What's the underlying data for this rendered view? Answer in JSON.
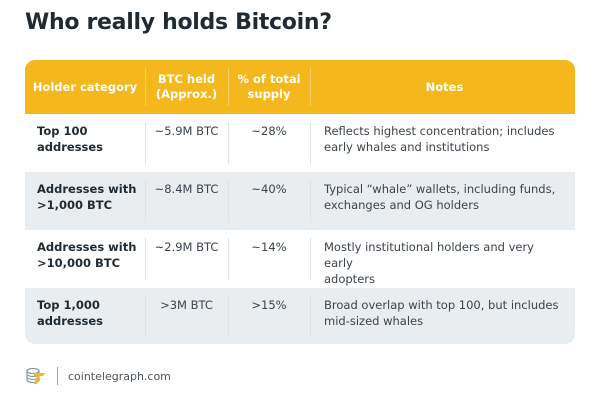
{
  "title": "Who really holds Bitcoin?",
  "table": {
    "headers": [
      "Holder category",
      "BTC held\n(Approx.)",
      "% of total supply",
      "Notes"
    ],
    "header_lines": {
      "col1": "Holder category",
      "col2_line1": "BTC held",
      "col2_line2": "(Approx.)",
      "col3_line1": "% of total",
      "col3_line2": "supply",
      "col4": "Notes"
    },
    "rows": [
      {
        "category_line1": "Top 100",
        "category_line2": "addresses",
        "btc": "~5.9M BTC",
        "pct": "~28%",
        "notes_line1": "Reflects highest concentration; includes",
        "notes_line2": "early whales and institutions"
      },
      {
        "category_line1": "Addresses with",
        "category_line2": ">1,000 BTC",
        "btc": "~8.4M BTC",
        "pct": "~40%",
        "notes_line1": "Typical “whale” wallets, including funds,",
        "notes_line2": "exchanges and OG holders"
      },
      {
        "category_line1": "Addresses with",
        "category_line2": ">10,000 BTC",
        "btc": "~2.9M BTC",
        "pct": "~14%",
        "notes_line1": "Mostly institutional holders and very early",
        "notes_line2": "adopters"
      },
      {
        "category_line1": "Top 1,000",
        "category_line2": "addresses",
        "btc": ">3M BTC",
        "pct": ">15%",
        "notes_line1": "Broad overlap with top 100, but includes",
        "notes_line2": "mid-sized whales"
      }
    ]
  },
  "footer": {
    "logo_icon": "cointelegraph-logo-icon",
    "site": "cointelegraph.com"
  },
  "colors": {
    "header_bg": "#f5b81c",
    "alt_row_bg": "#e9edf0",
    "title": "#1f2a33"
  }
}
